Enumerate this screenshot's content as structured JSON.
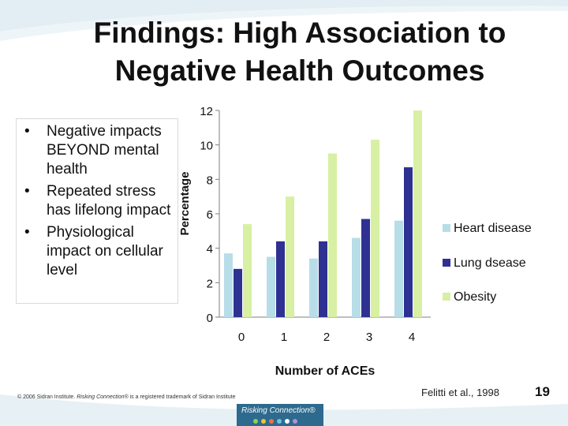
{
  "slide": {
    "title_line1": "Findings: High Association to",
    "title_line2": "Negative Health Outcomes",
    "bullets": [
      "Negative impacts BEYOND mental health",
      "Repeated stress has lifelong impact",
      "Physiological impact on cellular level"
    ],
    "bullet_glyph": "•",
    "copyright_prefix": "© 2006 Sidran Institute. ",
    "copyright_brand": "Risking Connection®",
    "copyright_suffix": " is a registered trademark of Sidran Institute",
    "citation": "Felitti et al., 1998",
    "page_number": "19",
    "logo_text": "Risking Connection®"
  },
  "chart_data": {
    "type": "bar",
    "categories": [
      "0",
      "1",
      "2",
      "3",
      "4"
    ],
    "series": [
      {
        "name": "Heart disease",
        "color": "#b7dde8",
        "values": [
          3.7,
          3.5,
          3.4,
          4.6,
          5.6
        ]
      },
      {
        "name": "Lung dsease",
        "color": "#2e3192",
        "values": [
          2.8,
          4.4,
          4.4,
          5.7,
          8.7
        ]
      },
      {
        "name": "Obesity",
        "color": "#d7f0a3",
        "values": [
          5.4,
          7.0,
          9.5,
          10.3,
          12.0
        ]
      }
    ],
    "y_ticks": [
      "0",
      "2",
      "4",
      "6",
      "8",
      "10",
      "12"
    ],
    "ylim": [
      0,
      12
    ],
    "xlabel": "Number of ACEs",
    "ylabel": "Percentage",
    "grid": false,
    "legend_position": "right"
  }
}
